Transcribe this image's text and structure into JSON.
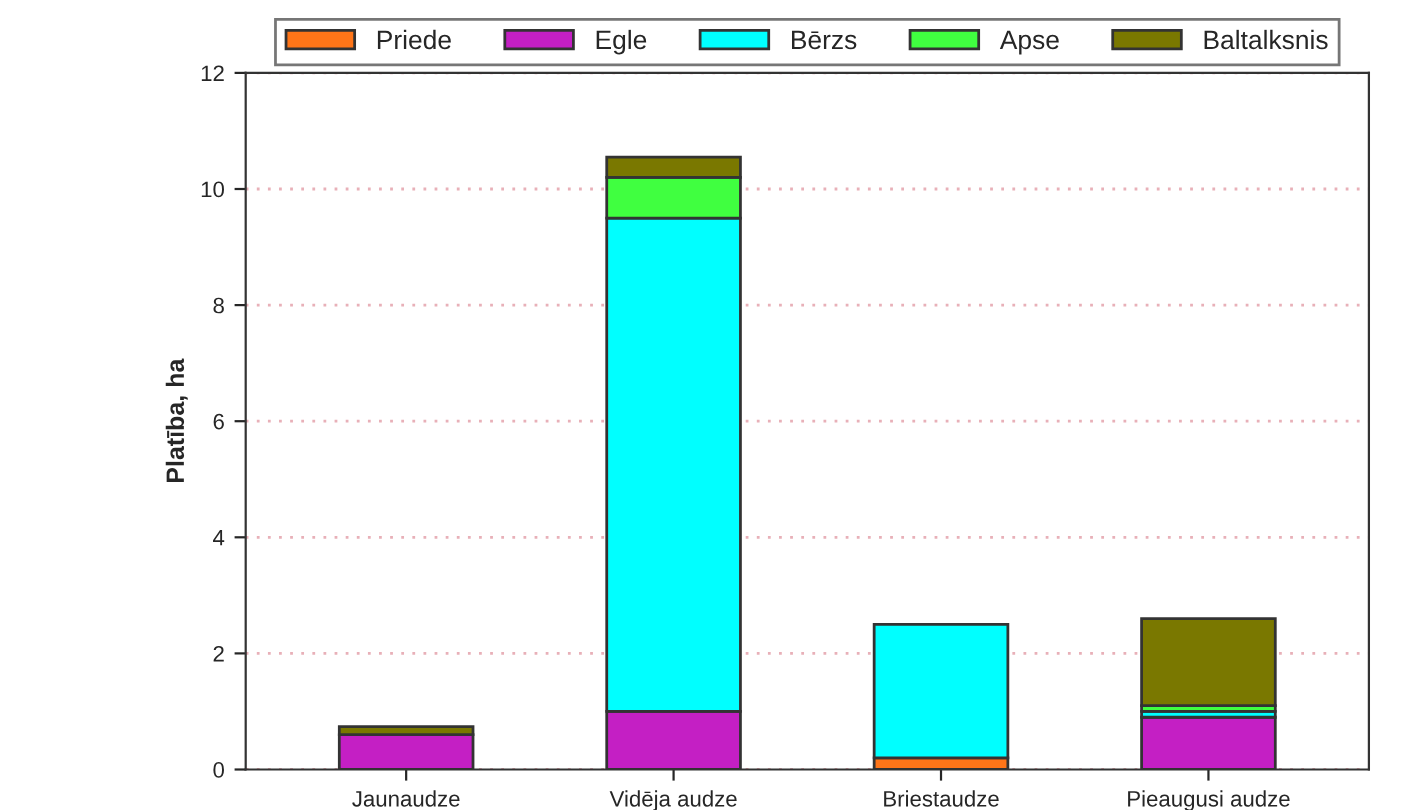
{
  "chart_data": {
    "type": "bar",
    "stacked": true,
    "ylabel": "Platība, ha",
    "categories": [
      "Jaunaudze",
      "Vidēja audze",
      "Briestaudze",
      "Pieaugusi audze"
    ],
    "series": [
      {
        "name": "Priede",
        "color": "#ff7518",
        "values": [
          null,
          null,
          0.2,
          null
        ]
      },
      {
        "name": "Egle",
        "color": "#c41fc4",
        "values": [
          0.6,
          1.0,
          null,
          0.9
        ]
      },
      {
        "name": "Bērzs",
        "color": "#00ffff",
        "values": [
          null,
          8.5,
          2.3,
          0.1
        ]
      },
      {
        "name": "Apse",
        "color": "#40ff40",
        "values": [
          null,
          0.7,
          null,
          0.1
        ]
      },
      {
        "name": "Baltalksnis",
        "color": "#7a7800",
        "values": [
          0.14,
          0.35,
          null,
          1.5
        ]
      }
    ],
    "ylim": [
      0,
      12
    ],
    "yticks": [
      0,
      2,
      4,
      6,
      8,
      10,
      12
    ],
    "grid": "y",
    "legend": "top"
  }
}
